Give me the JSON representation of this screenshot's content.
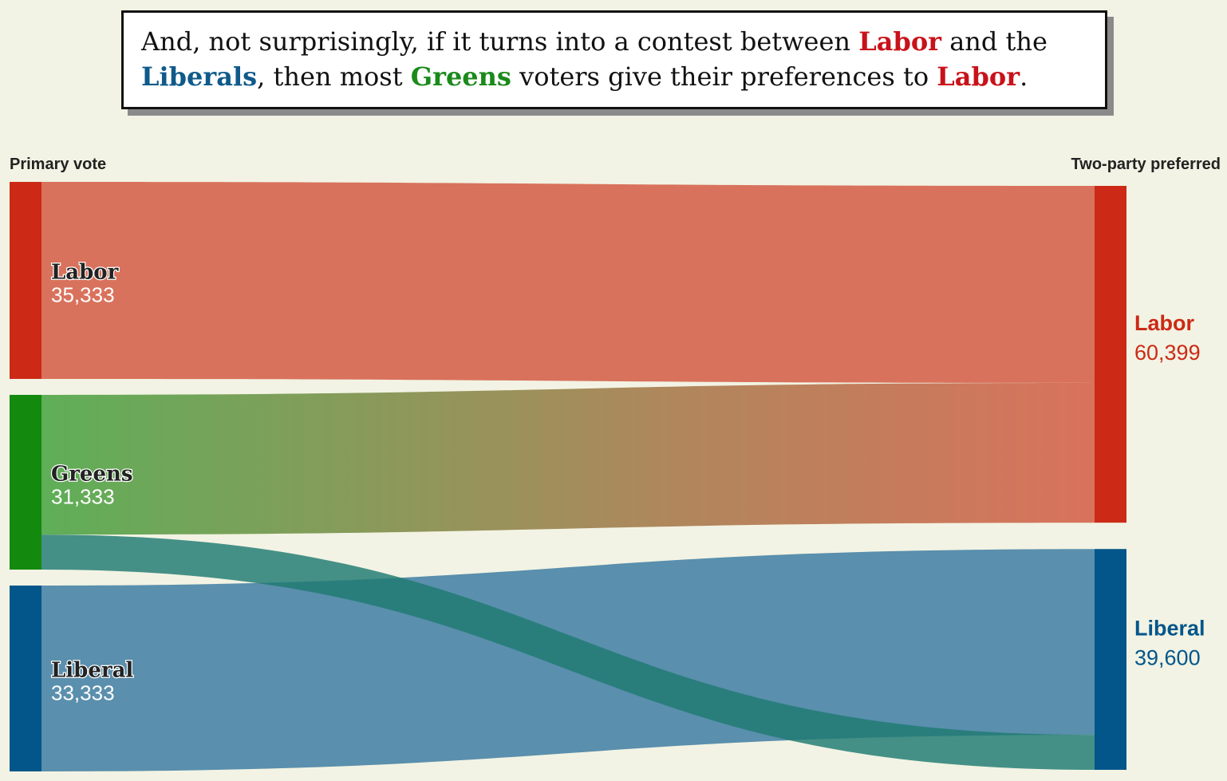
{
  "caption": {
    "t1": "And, not surprisingly, if it turns into a contest between ",
    "labor1": "Labor",
    "t2": " and the ",
    "liberals": "Liberals",
    "t3": ", then most ",
    "greens": "Greens",
    "t4": " voters give their preferences to ",
    "labor2": "Labor",
    "t5": "."
  },
  "left_heading": "Primary vote",
  "right_heading": "Two-party preferred",
  "colors": {
    "labor": "#cc2a16",
    "labor_flow": "#d9725c",
    "greens": "#138a0e",
    "greens_flow": "#5fae58",
    "liberal": "#02568a",
    "liberal_flow": "#5a8fad",
    "green_to_liberal_flow": "#1f7a72"
  },
  "chart_data": {
    "type": "sankey",
    "sources": [
      {
        "id": "labor",
        "name": "Labor",
        "value_label": "35,333",
        "value": 35333
      },
      {
        "id": "greens",
        "name": "Greens",
        "value_label": "31,333",
        "value": 31333
      },
      {
        "id": "liberal",
        "name": "Liberal",
        "value_label": "33,333",
        "value": 33333
      }
    ],
    "targets": [
      {
        "id": "labor",
        "name": "Labor",
        "value_label": "60,399",
        "value": 60399
      },
      {
        "id": "liberal",
        "name": "Liberal",
        "value_label": "39,600",
        "value": 39600
      }
    ],
    "flows": [
      {
        "from": "labor",
        "to": "labor",
        "value": 35333
      },
      {
        "from": "greens",
        "to": "labor",
        "value": 25066
      },
      {
        "from": "greens",
        "to": "liberal",
        "value": 6267
      },
      {
        "from": "liberal",
        "to": "liberal",
        "value": 33333
      }
    ]
  }
}
